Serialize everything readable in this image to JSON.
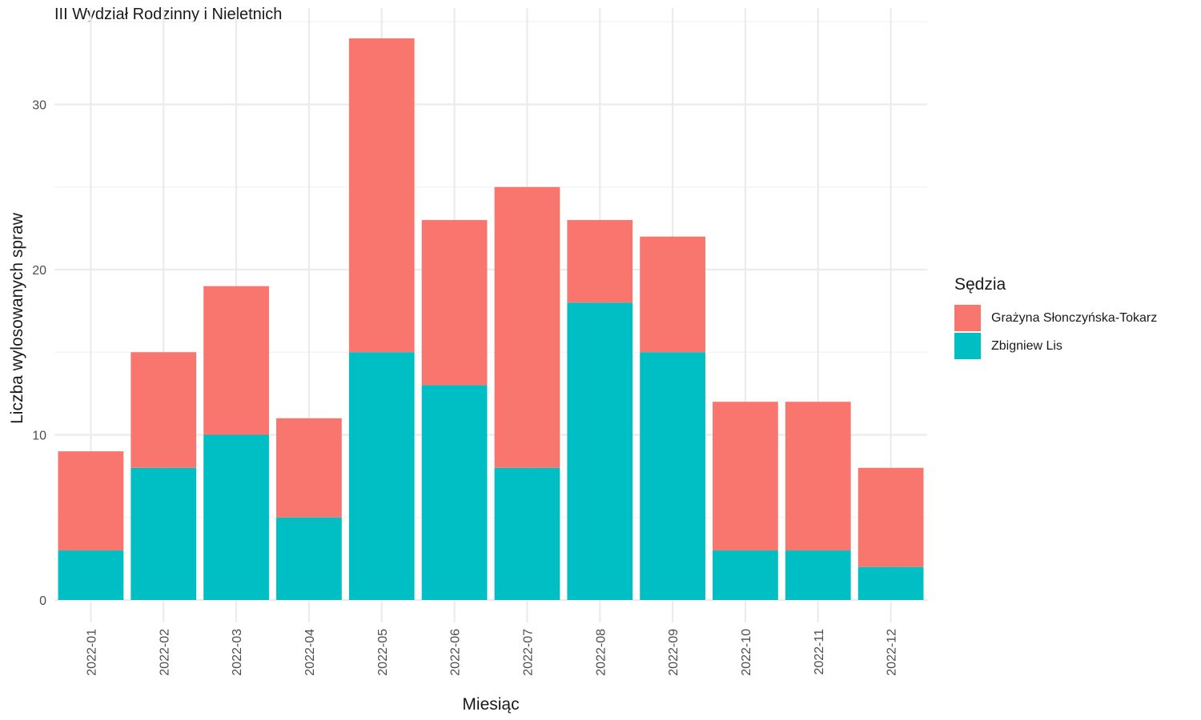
{
  "title": "III Wydział Rodzinny i Nieletnich",
  "legend": {
    "title": "Sędzia",
    "items": [
      {
        "label": "Grażyna Słonczyńska-Tokarz",
        "color": "#F8766D"
      },
      {
        "label": "Zbigniew Lis",
        "color": "#00BFC4"
      }
    ]
  },
  "chart_data": {
    "type": "bar",
    "stacked": true,
    "title": "III Wydział Rodzinny i Nieletnich",
    "xlabel": "Miesiąc",
    "ylabel": "Liczba wylosowanych spraw",
    "categories": [
      "2022-01",
      "2022-02",
      "2022-03",
      "2022-04",
      "2022-05",
      "2022-06",
      "2022-07",
      "2022-08",
      "2022-09",
      "2022-10",
      "2022-11",
      "2022-12"
    ],
    "series": [
      {
        "name": "Zbigniew Lis",
        "color": "#00BFC4",
        "values": [
          3,
          8,
          10,
          5,
          15,
          13,
          8,
          18,
          15,
          3,
          3,
          2
        ]
      },
      {
        "name": "Grażyna Słonczyńska-Tokarz",
        "color": "#F8766D",
        "values": [
          6,
          7,
          9,
          6,
          19,
          10,
          17,
          5,
          7,
          9,
          9,
          6
        ]
      }
    ],
    "yticks": [
      0,
      10,
      20,
      30
    ],
    "ylim": [
      0,
      35.7
    ],
    "grid": true,
    "legend_position": "right"
  }
}
